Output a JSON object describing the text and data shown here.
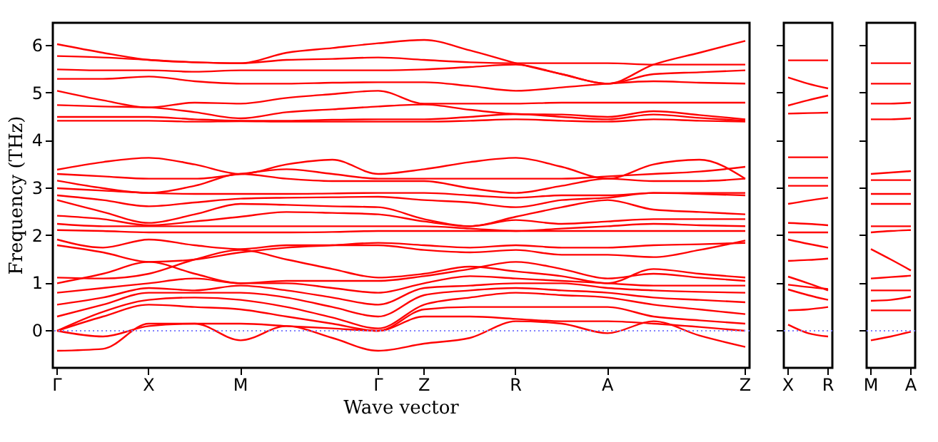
{
  "chart_data": [
    {
      "type": "line",
      "xlabel": "Wave vector",
      "ylabel": "Frequency (THz)",
      "categories": [
        "Γ",
        null,
        "X",
        null,
        "M",
        null,
        null,
        "Γ",
        "Z",
        null,
        "R",
        null,
        "A",
        null,
        null,
        "Z"
      ],
      "ylim": [
        -0.78,
        6.48
      ],
      "yticks": [
        0,
        1,
        2,
        3,
        4,
        5,
        6
      ],
      "grid": false,
      "legend": false,
      "ref_lines": [
        {
          "axis": "y",
          "value": 0,
          "color": "#7f7fff",
          "line_style": "dotted"
        }
      ],
      "series": [
        {
          "color": "#ff0000",
          "values": [
            6.03,
            5.85,
            5.7,
            5.65,
            5.63,
            5.85,
            5.95,
            6.05,
            6.12,
            5.9,
            5.63,
            5.4,
            5.2,
            5.6,
            5.85,
            6.1
          ]
        },
        {
          "color": "#ff0000",
          "values": [
            5.78,
            5.75,
            5.7,
            5.65,
            5.63,
            5.7,
            5.72,
            5.75,
            5.7,
            5.65,
            5.63,
            5.63,
            5.63,
            5.6,
            5.6,
            5.6
          ]
        },
        {
          "color": "#ff0000",
          "values": [
            5.5,
            5.48,
            5.48,
            5.45,
            5.48,
            5.48,
            5.48,
            5.48,
            5.5,
            5.55,
            5.6,
            5.4,
            5.2,
            5.4,
            5.44,
            5.48
          ]
        },
        {
          "color": "#ff0000",
          "values": [
            5.3,
            5.3,
            5.35,
            5.25,
            5.2,
            5.2,
            5.22,
            5.23,
            5.23,
            5.15,
            5.05,
            5.12,
            5.2,
            5.25,
            5.22,
            5.2
          ]
        },
        {
          "color": "#ff0000",
          "values": [
            5.05,
            4.85,
            4.7,
            4.8,
            4.78,
            4.9,
            4.98,
            5.05,
            4.78,
            4.78,
            4.78,
            4.8,
            4.8,
            4.8,
            4.8,
            4.8
          ]
        },
        {
          "color": "#ff0000",
          "values": [
            4.75,
            4.72,
            4.7,
            4.6,
            4.47,
            4.6,
            4.66,
            4.72,
            4.76,
            4.65,
            4.56,
            4.55,
            4.5,
            4.62,
            4.54,
            4.45
          ]
        },
        {
          "color": "#ff0000",
          "values": [
            4.5,
            4.5,
            4.5,
            4.45,
            4.42,
            4.42,
            4.44,
            4.45,
            4.45,
            4.5,
            4.56,
            4.5,
            4.45,
            4.55,
            4.48,
            4.42
          ]
        },
        {
          "color": "#ff0000",
          "values": [
            4.42,
            4.42,
            4.42,
            4.4,
            4.41,
            4.4,
            4.4,
            4.4,
            4.4,
            4.42,
            4.45,
            4.42,
            4.4,
            4.45,
            4.42,
            4.4
          ]
        },
        {
          "color": "#ff0000",
          "values": [
            3.39,
            3.55,
            3.64,
            3.5,
            3.3,
            3.5,
            3.6,
            3.3,
            3.4,
            3.55,
            3.64,
            3.45,
            3.2,
            3.5,
            3.6,
            3.2
          ]
        },
        {
          "color": "#ff0000",
          "values": [
            3.3,
            3.25,
            3.2,
            3.2,
            3.3,
            3.4,
            3.3,
            3.2,
            3.2,
            3.2,
            3.2,
            3.2,
            3.25,
            3.3,
            3.35,
            3.45
          ]
        },
        {
          "color": "#ff0000",
          "values": [
            3.16,
            3.0,
            2.9,
            3.05,
            3.3,
            3.2,
            3.15,
            3.15,
            3.15,
            3.0,
            2.9,
            3.05,
            3.2,
            3.15,
            3.15,
            3.2
          ]
        },
        {
          "color": "#ff0000",
          "values": [
            3.0,
            2.95,
            2.9,
            2.88,
            2.88,
            2.88,
            2.89,
            2.9,
            2.9,
            2.85,
            2.8,
            2.85,
            2.85,
            2.9,
            2.9,
            2.9
          ]
        },
        {
          "color": "#ff0000",
          "values": [
            2.85,
            2.75,
            2.62,
            2.7,
            2.78,
            2.8,
            2.81,
            2.82,
            2.75,
            2.7,
            2.6,
            2.75,
            2.8,
            2.9,
            2.88,
            2.85
          ]
        },
        {
          "color": "#ff0000",
          "values": [
            2.75,
            2.5,
            2.27,
            2.45,
            2.67,
            2.65,
            2.62,
            2.6,
            2.35,
            2.2,
            2.4,
            2.6,
            2.75,
            2.55,
            2.5,
            2.45
          ]
        },
        {
          "color": "#ff0000",
          "values": [
            2.42,
            2.35,
            2.22,
            2.3,
            2.4,
            2.5,
            2.48,
            2.45,
            2.3,
            2.2,
            2.33,
            2.25,
            2.3,
            2.35,
            2.35,
            2.35
          ]
        },
        {
          "color": "#ff0000",
          "values": [
            2.25,
            2.2,
            2.2,
            2.2,
            2.2,
            2.2,
            2.2,
            2.2,
            2.2,
            2.15,
            2.1,
            2.15,
            2.2,
            2.25,
            2.22,
            2.2
          ]
        },
        {
          "color": "#ff0000",
          "values": [
            2.12,
            2.1,
            2.07,
            2.07,
            2.07,
            2.07,
            2.08,
            2.1,
            2.1,
            2.1,
            2.1,
            2.1,
            2.1,
            2.1,
            2.1,
            2.1
          ]
        },
        {
          "color": "#ff0000",
          "values": [
            1.92,
            1.75,
            1.92,
            1.8,
            1.72,
            1.8,
            1.8,
            1.8,
            1.7,
            1.65,
            1.7,
            1.6,
            1.6,
            1.55,
            1.7,
            1.9
          ]
        },
        {
          "color": "#ff0000",
          "values": [
            1.8,
            1.65,
            1.45,
            1.5,
            1.65,
            1.75,
            1.8,
            1.85,
            1.8,
            1.75,
            1.8,
            1.75,
            1.75,
            1.8,
            1.82,
            1.85
          ]
        },
        {
          "color": "#ff0000",
          "values": [
            -0.42,
            -0.38,
            0.15,
            0.15,
            -0.2,
            0.1,
            -0.15,
            -0.42,
            -0.27,
            -0.15,
            0.2,
            0.15,
            -0.05,
            0.2,
            -0.1,
            -0.34
          ]
        },
        {
          "color": "#ff0000",
          "values": [
            0,
            -0.12,
            0.1,
            0.15,
            0.15,
            0.1,
            0.05,
            0,
            0.3,
            0.3,
            0.25,
            0.2,
            0.2,
            0.15,
            0.08,
            0
          ]
        },
        {
          "color": "#ff0000",
          "values": [
            0,
            0.3,
            0.55,
            0.5,
            0.45,
            0.3,
            0.15,
            0,
            0.45,
            0.5,
            0.5,
            0.5,
            0.5,
            0.3,
            0.22,
            0.15
          ]
        },
        {
          "color": "#ff0000",
          "values": [
            0,
            0.4,
            0.65,
            0.7,
            0.65,
            0.5,
            0.28,
            0.05,
            0.55,
            0.7,
            0.8,
            0.75,
            0.7,
            0.55,
            0.45,
            0.35
          ]
        },
        {
          "color": "#ff0000",
          "values": [
            0.3,
            0.55,
            0.8,
            0.8,
            0.8,
            0.7,
            0.5,
            0.3,
            0.75,
            0.85,
            0.9,
            0.85,
            0.8,
            0.7,
            0.65,
            0.6
          ]
        },
        {
          "color": "#ff0000",
          "values": [
            0.55,
            0.7,
            0.9,
            0.85,
            0.95,
            0.85,
            0.7,
            0.55,
            0.9,
            0.95,
            1.0,
            1.0,
            0.9,
            0.85,
            0.82,
            0.8
          ]
        },
        {
          "color": "#ff0000",
          "values": [
            0.8,
            0.9,
            1.0,
            1.1,
            1.0,
            1.0,
            0.9,
            0.8,
            1.0,
            1.15,
            1.1,
            1.05,
            1.0,
            0.95,
            0.95,
            0.95
          ]
        },
        {
          "color": "#ff0000",
          "values": [
            1.0,
            1.2,
            1.45,
            1.2,
            1.0,
            1.05,
            1.05,
            1.05,
            1.15,
            1.3,
            1.45,
            1.3,
            1.1,
            1.2,
            1.12,
            1.05
          ]
        },
        {
          "color": "#ff0000",
          "values": [
            1.12,
            1.1,
            1.2,
            1.5,
            1.7,
            1.5,
            1.3,
            1.12,
            1.2,
            1.35,
            1.25,
            1.15,
            1.0,
            1.3,
            1.2,
            1.12
          ]
        }
      ]
    },
    {
      "type": "line",
      "categories": [
        "X",
        null,
        "R"
      ],
      "ylim": [
        -0.78,
        6.48
      ],
      "yticks": [
        0,
        1,
        2,
        3,
        4,
        5,
        6
      ],
      "tick_labels": "x",
      "grid": false,
      "legend": false,
      "ref_lines": [
        {
          "axis": "y",
          "value": 0,
          "color": "#7f7fff",
          "line_style": "dotted"
        }
      ],
      "series": [
        {
          "color": "#ff0000",
          "values": [
            5.69,
            5.69,
            5.69
          ]
        },
        {
          "color": "#ff0000",
          "values": [
            5.33,
            5.2,
            5.1
          ]
        },
        {
          "color": "#ff0000",
          "values": [
            4.74,
            4.85,
            4.95
          ]
        },
        {
          "color": "#ff0000",
          "values": [
            4.57,
            4.58,
            4.59
          ]
        },
        {
          "color": "#ff0000",
          "values": [
            3.65,
            3.65,
            3.65
          ]
        },
        {
          "color": "#ff0000",
          "values": [
            3.22,
            3.22,
            3.22
          ]
        },
        {
          "color": "#ff0000",
          "values": [
            3.05,
            3.05,
            3.05
          ]
        },
        {
          "color": "#ff0000",
          "values": [
            2.67,
            2.74,
            2.8
          ]
        },
        {
          "color": "#ff0000",
          "values": [
            2.27,
            2.25,
            2.22
          ]
        },
        {
          "color": "#ff0000",
          "values": [
            2.07,
            2.07,
            2.07
          ]
        },
        {
          "color": "#ff0000",
          "values": [
            1.92,
            1.83,
            1.75
          ]
        },
        {
          "color": "#ff0000",
          "values": [
            1.47,
            1.49,
            1.52
          ]
        },
        {
          "color": "#ff0000",
          "values": [
            1.14,
            1.0,
            0.85
          ]
        },
        {
          "color": "#ff0000",
          "values": [
            0.97,
            0.92,
            0.88
          ]
        },
        {
          "color": "#ff0000",
          "values": [
            0.87,
            0.75,
            0.65
          ]
        },
        {
          "color": "#ff0000",
          "values": [
            0.43,
            0.45,
            0.5
          ]
        },
        {
          "color": "#ff0000",
          "values": [
            0.13,
            -0.05,
            -0.12
          ]
        }
      ]
    },
    {
      "type": "line",
      "categories": [
        "M",
        null,
        "A"
      ],
      "ylim": [
        -0.78,
        6.48
      ],
      "yticks": [
        0,
        1,
        2,
        3,
        4,
        5,
        6
      ],
      "tick_labels": "x",
      "grid": false,
      "legend": false,
      "ref_lines": [
        {
          "axis": "y",
          "value": 0,
          "color": "#7f7fff",
          "line_style": "dotted"
        }
      ],
      "series": [
        {
          "color": "#ff0000",
          "values": [
            5.63,
            5.63,
            5.63
          ]
        },
        {
          "color": "#ff0000",
          "values": [
            5.2,
            5.2,
            5.2
          ]
        },
        {
          "color": "#ff0000",
          "values": [
            4.78,
            4.78,
            4.8
          ]
        },
        {
          "color": "#ff0000",
          "values": [
            4.45,
            4.45,
            4.47
          ]
        },
        {
          "color": "#ff0000",
          "values": [
            3.3,
            3.33,
            3.36
          ]
        },
        {
          "color": "#ff0000",
          "values": [
            3.17,
            3.17,
            3.17
          ]
        },
        {
          "color": "#ff0000",
          "values": [
            2.88,
            2.88,
            2.88
          ]
        },
        {
          "color": "#ff0000",
          "values": [
            2.67,
            2.67,
            2.67
          ]
        },
        {
          "color": "#ff0000",
          "values": [
            2.2,
            2.2,
            2.2
          ]
        },
        {
          "color": "#ff0000",
          "values": [
            2.07,
            2.1,
            2.12
          ]
        },
        {
          "color": "#ff0000",
          "values": [
            1.72,
            1.5,
            1.27
          ]
        },
        {
          "color": "#ff0000",
          "values": [
            1.1,
            1.13,
            1.16
          ]
        },
        {
          "color": "#ff0000",
          "values": [
            0.85,
            0.85,
            0.85
          ]
        },
        {
          "color": "#ff0000",
          "values": [
            0.63,
            0.65,
            0.72
          ]
        },
        {
          "color": "#ff0000",
          "values": [
            0.43,
            0.43,
            0.43
          ]
        },
        {
          "color": "#ff0000",
          "values": [
            -0.2,
            -0.12,
            -0.02
          ]
        }
      ]
    }
  ]
}
